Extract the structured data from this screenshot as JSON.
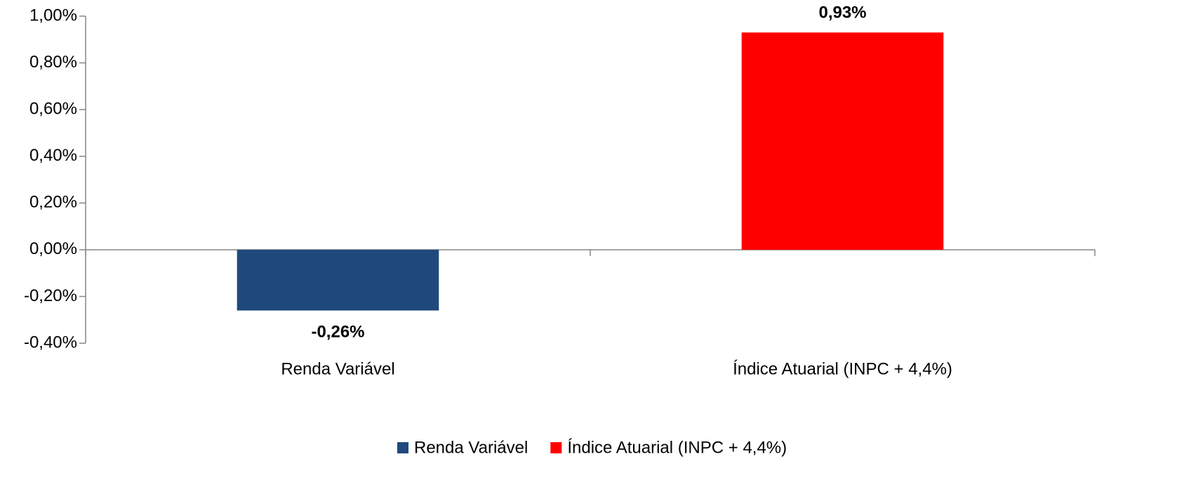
{
  "chart_data": {
    "type": "bar",
    "categories": [
      "Renda Variável",
      "Índice Atuarial (INPC + 4,4%)"
    ],
    "series": [
      {
        "name": "Renda Variável",
        "color": "#1f497d",
        "values": [
          -0.26,
          null
        ],
        "value_labels": [
          "-0,26%",
          null
        ]
      },
      {
        "name": "Índice Atuarial (INPC + 4,4%)",
        "color": "#ff0000",
        "values": [
          null,
          0.93
        ],
        "value_labels": [
          null,
          "0,93%"
        ]
      }
    ],
    "ylim": [
      -0.4,
      1.0
    ],
    "yticks": [
      {
        "value": -0.4,
        "label": "-0,40%"
      },
      {
        "value": -0.2,
        "label": "-0,20%"
      },
      {
        "value": 0,
        "label": "0,00%"
      },
      {
        "value": 0.2,
        "label": "0,20%"
      },
      {
        "value": 0.4,
        "label": "0,40%"
      },
      {
        "value": 0.6,
        "label": "0,60%"
      },
      {
        "value": 0.8,
        "label": "0,80%"
      },
      {
        "value": 1.0,
        "label": "1,00%"
      }
    ],
    "grid": false,
    "legend": "bottom"
  }
}
